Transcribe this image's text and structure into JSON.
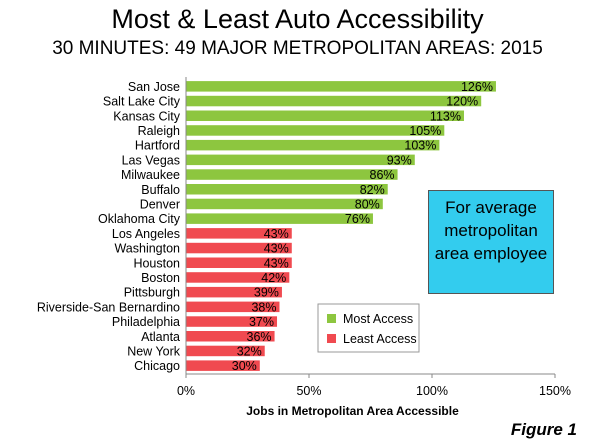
{
  "chart_data": {
    "type": "bar",
    "orientation": "horizontal",
    "title": "Most & Least Auto Accessibility",
    "subtitle": "30 MINUTES: 49 MAJOR METROPOLITAN AREAS: 2015",
    "xlabel": "Jobs in Metropolitan Area Accessible",
    "ylabel": "",
    "xlim": [
      0,
      150
    ],
    "xticks": [
      "0%",
      "50%",
      "100%",
      "150%"
    ],
    "grid": false,
    "categories": [
      "San Jose",
      "Salt Lake City",
      "Kansas City",
      "Raleigh",
      "Hartford",
      "Las Vegas",
      "Milwaukee",
      "Buffalo",
      "Denver",
      "Oklahoma City",
      "Los Angeles",
      "Washington",
      "Houston",
      "Boston",
      "Pittsburgh",
      "Riverside-San Bernardino",
      "Philadelphia",
      "Atlanta",
      "New York",
      "Chicago"
    ],
    "values": [
      126,
      120,
      113,
      105,
      103,
      93,
      86,
      82,
      80,
      76,
      43,
      43,
      43,
      42,
      39,
      38,
      37,
      36,
      32,
      30
    ],
    "data_labels": [
      "126%",
      "120%",
      "113%",
      "105%",
      "103%",
      "93%",
      "86%",
      "82%",
      "80%",
      "76%",
      "43%",
      "43%",
      "43%",
      "42%",
      "39%",
      "38%",
      "37%",
      "36%",
      "32%",
      "30%"
    ],
    "groups": [
      0,
      0,
      0,
      0,
      0,
      0,
      0,
      0,
      0,
      0,
      1,
      1,
      1,
      1,
      1,
      1,
      1,
      1,
      1,
      1
    ],
    "series": [
      {
        "name": "Most Access",
        "color": "#8dc63f"
      },
      {
        "name": "Least Access",
        "color": "#f04a50"
      }
    ],
    "legend_position": "bottom-right",
    "annotation": "For average metropolitan area employee",
    "annotation_color": "#33ccee",
    "figure_label": "Figure 1"
  }
}
